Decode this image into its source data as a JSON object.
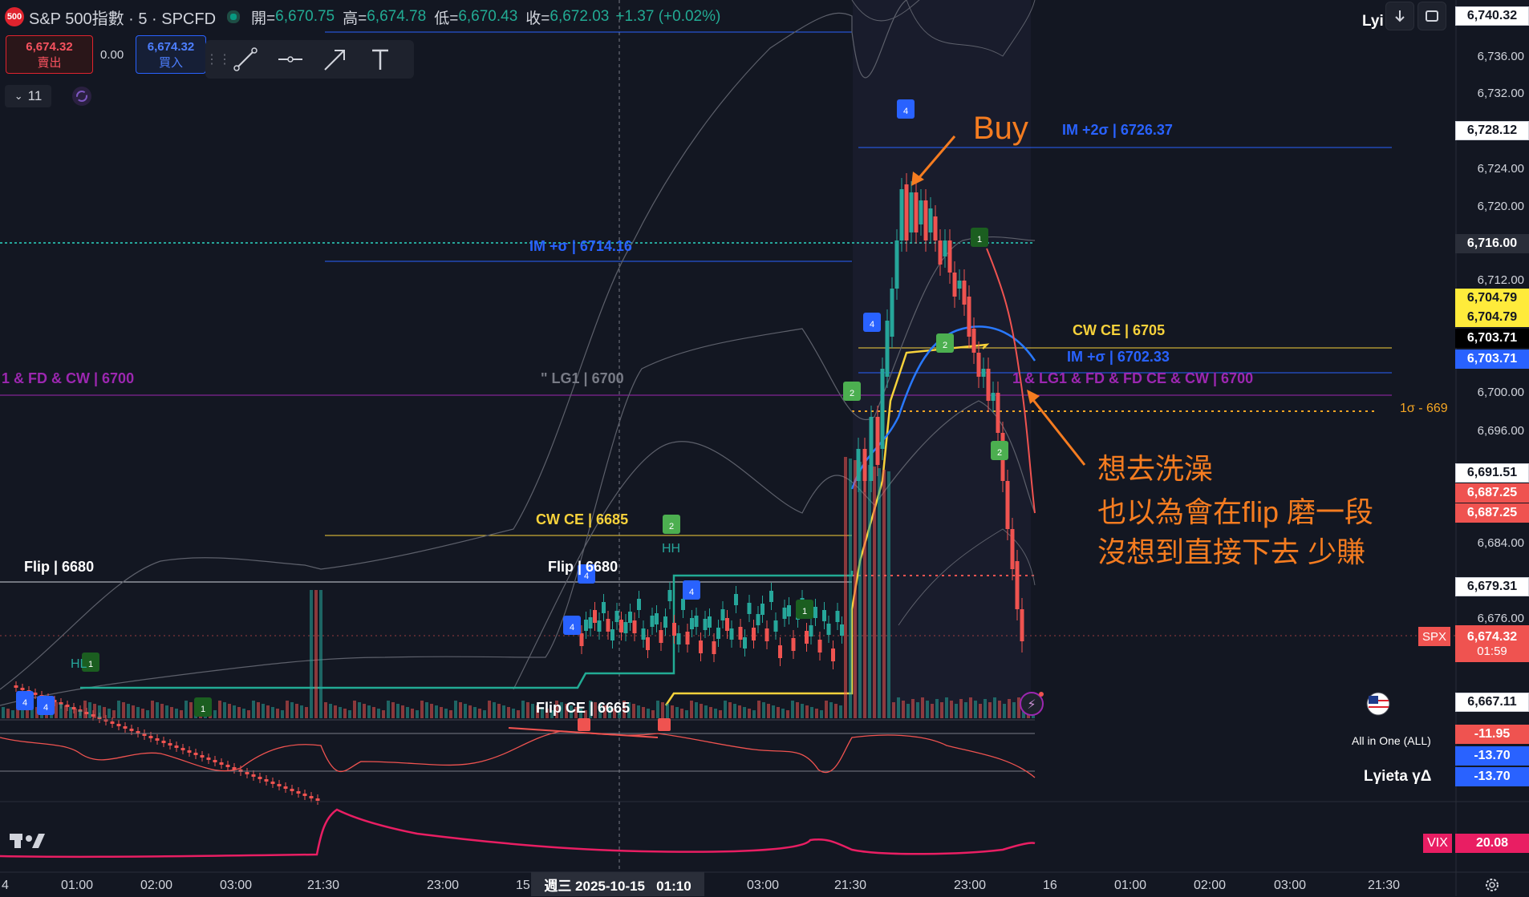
{
  "header": {
    "badge": "500",
    "title": "S&P 500指數 · 5 · SPCFD",
    "open_label": "開=",
    "open": "6,670.75",
    "high_label": "高=",
    "high": "6,674.78",
    "low_label": "低=",
    "low": "6,670.43",
    "close_label": "收=",
    "close": "6,672.03",
    "change": "+1.37 (+0.02%)",
    "indicator_label": "Lyi"
  },
  "trade": {
    "sell_price": "6,674.32",
    "sell_label": "賣出",
    "spread": "0.00",
    "buy_price": "6,674.32",
    "buy_label": "買入"
  },
  "toolbar": {
    "intervals": "11"
  },
  "price_axis": {
    "ticks": [
      "6,736.00",
      "6,732.00",
      "6,724.00",
      "6,720.00",
      "6,712.00",
      "6,696.00",
      "6,684.00",
      "6,676.00"
    ]
  },
  "price_tags": {
    "top": "6,740.32",
    "t6728": "6,728.12",
    "t6716": "6,716.00",
    "t6704a": "6,704.79",
    "t6704b": "6,704.79",
    "t6703a": "6,703.71",
    "t6703b": "6,703.71",
    "t6700": "6,700.00",
    "t6691": "6,691.51",
    "t6687a": "6,687.25",
    "t6687b": "6,687.25",
    "t6679": "6,679.31",
    "spx_label": "SPX",
    "spx_price": "6,674.32",
    "countdown": "01:59",
    "t6667": "6,667.11"
  },
  "lower_panes": {
    "indicator_name": "All in One (ALL)",
    "val1": "-11.95",
    "val2": "-13.70",
    "gamma_name": "Lγieta γΔ",
    "val3": "-13.70",
    "vix_label": "VIX",
    "vix_value": "20.08"
  },
  "time_axis": {
    "labels": [
      "4",
      "01:00",
      "02:00",
      "03:00",
      "21:30",
      "23:00",
      "15",
      "03:00",
      "21:30",
      "23:00",
      "16",
      "01:00",
      "02:00",
      "03:00",
      "21:30"
    ],
    "cursor": "週三 2025-10-15   01:10"
  },
  "annotations": {
    "im2s": "IM +2σ | 6726.37",
    "im_s_top": "IM +σ | 6714.16",
    "cw_ce_6705": "CW CE | 6705",
    "im_s_6702": "IM +σ | 6702.33",
    "lg1_left": "1 & FD & CW | 6700",
    "lg1_mid": "\" LG1 | 6700",
    "lg1_right": "1 & LG1 & FD & FD CE & CW | 6700",
    "sigma_minus": "1σ - 669",
    "cw_ce_6685": "CW CE | 6685",
    "flip_left": "Flip | 6680",
    "flip_mid": "Flip | 6680",
    "flip_ce": "Flip CE | 6665",
    "buy": "Buy",
    "note_line1": "想去洗澡",
    "note_line2": "也以為會在flip 磨一段",
    "note_line3": "沒想到直接下去 少賺",
    "hh": "HH",
    "hl": "HL"
  },
  "colors": {
    "bg": "#131722",
    "up": "#26a69a",
    "down": "#ef5350",
    "im_blue": "#2962ff",
    "cw_yellow": "#f7d23b",
    "purple": "#9c27b0",
    "orange": "#f57c20"
  }
}
